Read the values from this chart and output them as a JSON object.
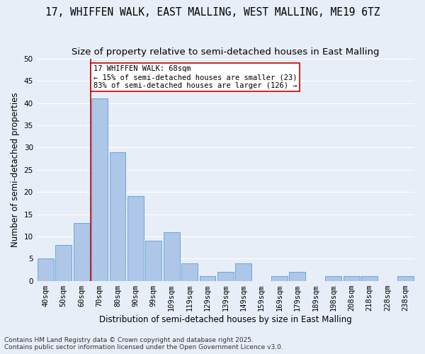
{
  "title1": "17, WHIFFEN WALK, EAST MALLING, WEST MALLING, ME19 6TZ",
  "title2": "Size of property relative to semi-detached houses in East Malling",
  "xlabel": "Distribution of semi-detached houses by size in East Malling",
  "ylabel": "Number of semi-detached properties",
  "categories": [
    "40sqm",
    "50sqm",
    "60sqm",
    "70sqm",
    "80sqm",
    "90sqm",
    "99sqm",
    "109sqm",
    "119sqm",
    "129sqm",
    "139sqm",
    "149sqm",
    "159sqm",
    "169sqm",
    "179sqm",
    "189sqm",
    "198sqm",
    "208sqm",
    "218sqm",
    "228sqm",
    "238sqm"
  ],
  "values": [
    5,
    8,
    13,
    41,
    29,
    19,
    9,
    11,
    4,
    1,
    2,
    4,
    0,
    1,
    2,
    0,
    1,
    1,
    1,
    0,
    1
  ],
  "bar_color": "#aec6e8",
  "bar_edge_color": "#5a9fd4",
  "ylim": [
    0,
    50
  ],
  "yticks": [
    0,
    5,
    10,
    15,
    20,
    25,
    30,
    35,
    40,
    45,
    50
  ],
  "vline_color": "#cc0000",
  "vline_x_idx": 3,
  "annotation_title": "17 WHIFFEN WALK: 68sqm",
  "annotation_line1": "← 15% of semi-detached houses are smaller (23)",
  "annotation_line2": "83% of semi-detached houses are larger (126) →",
  "annotation_box_color": "#ffffff",
  "annotation_box_edge": "#cc0000",
  "footer1": "Contains HM Land Registry data © Crown copyright and database right 2025.",
  "footer2": "Contains public sector information licensed under the Open Government Licence v3.0.",
  "bg_color": "#e8eef7",
  "grid_color": "#ffffff",
  "title_fontsize": 10.5,
  "subtitle_fontsize": 9.5,
  "axis_label_fontsize": 8.5,
  "tick_fontsize": 7.5,
  "annotation_fontsize": 7.5,
  "footer_fontsize": 6.5
}
